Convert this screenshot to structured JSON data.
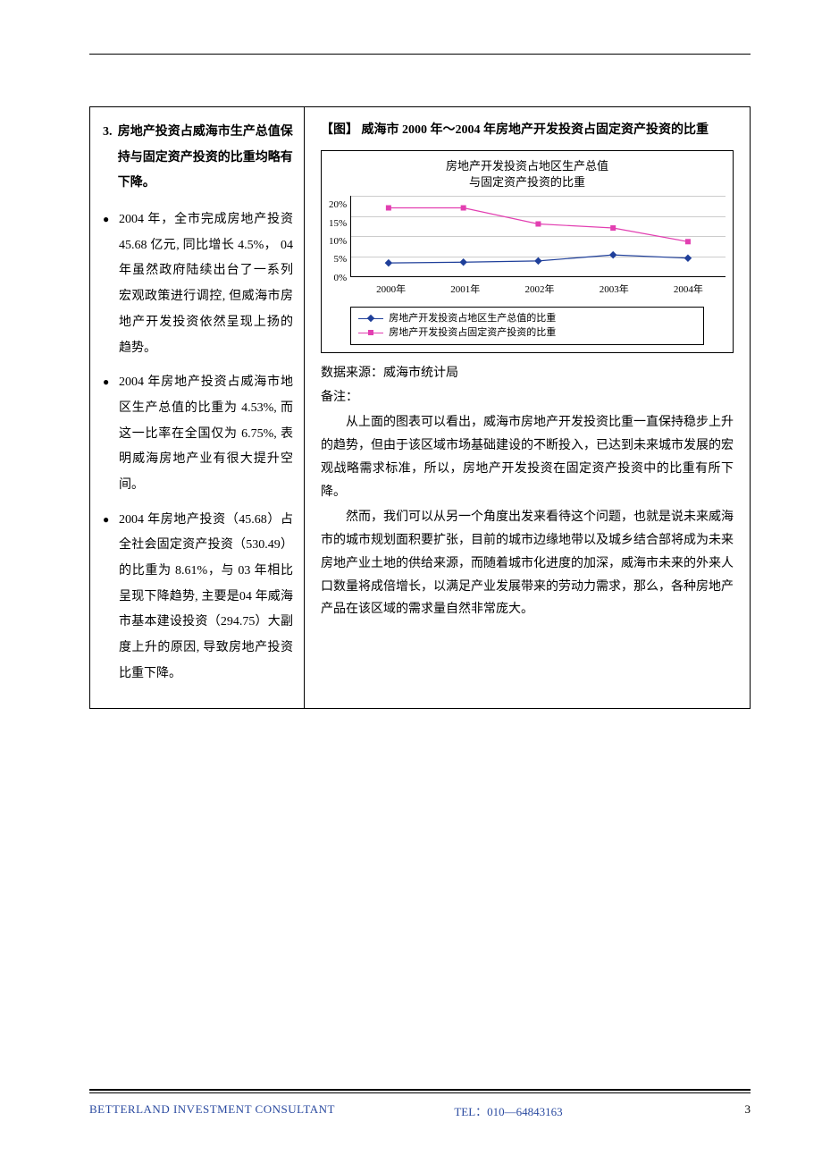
{
  "left": {
    "heading_num": "3.",
    "heading_text": "房地产投资占威海市生产总值保持与固定资产投资的比重均略有下降。",
    "bullets": [
      "2004 年，全市完成房地产投资 45.68 亿元, 同比增长 4.5%，  04 年虽然政府陆续出台了一系列宏观政策进行调控, 但威海市房地产开发投资依然呈现上扬的趋势。",
      "2004 年房地产投资占威海市地区生产总值的比重为 4.53%, 而这一比率在全国仅为 6.75%, 表明威海房地产业有很大提升空间。",
      "2004 年房地产投资（45.68）占全社会固定资产投资（530.49）的比重为 8.61%，与 03 年相比呈现下降趋势, 主要是04 年威海市基本建设投资（294.75）大副度上升的原因, 导致房地产投资比重下降。"
    ]
  },
  "right": {
    "fig_title": "【图】 威海市 2000 年～2004 年房地产开发投资占固定资产投资的比重",
    "chart": {
      "type": "line",
      "title_l1": "房地产开发投资占地区生产总值",
      "title_l2": "与固定资产投资的比重",
      "y_ticks": [
        "20%",
        "15%",
        "10%",
        "5%",
        "0%"
      ],
      "y_max": 20,
      "categories": [
        "2000年",
        "2001年",
        "2002年",
        "2003年",
        "2004年"
      ],
      "series": [
        {
          "name": "房地产开发投资占地区生产总值的比重",
          "color": "#1f3f9a",
          "marker": "diamond",
          "values": [
            3.3,
            3.5,
            3.8,
            5.3,
            4.5
          ]
        },
        {
          "name": "房地产开发投资占固定资产投资的比重",
          "color": "#e23fb1",
          "marker": "square",
          "values": [
            17.0,
            17.0,
            13.0,
            12.0,
            8.6
          ]
        }
      ],
      "background_color": "#ffffff",
      "grid_color": "#cccccc"
    },
    "source": "数据来源：威海市统计局",
    "note_heading": "备注：",
    "paras": [
      "从上面的图表可以看出，威海市房地产开发投资比重一直保持稳步上升的趋势，但由于该区域市场基础建设的不断投入，已达到未来城市发展的宏观战略需求标准，所以，房地产开发投资在固定资产投资中的比重有所下降。",
      "然而，我们可以从另一个角度出发来看待这个问题，也就是说未来威海市的城市规划面积要扩张，目前的城市边缘地带以及城乡结合部将成为未来房地产业土地的供给来源，而随着城市化进度的加深，威海市未来的外来人口数量将成倍增长，以满足产业发展带来的劳动力需求，那么，各种房地产产品在该区域的需求量自然非常庞大。"
    ]
  },
  "footer": {
    "company": "BETTERLAND INVESTMENT CONSULTANT",
    "tel": "TEL：010—64843163",
    "page": "3"
  }
}
